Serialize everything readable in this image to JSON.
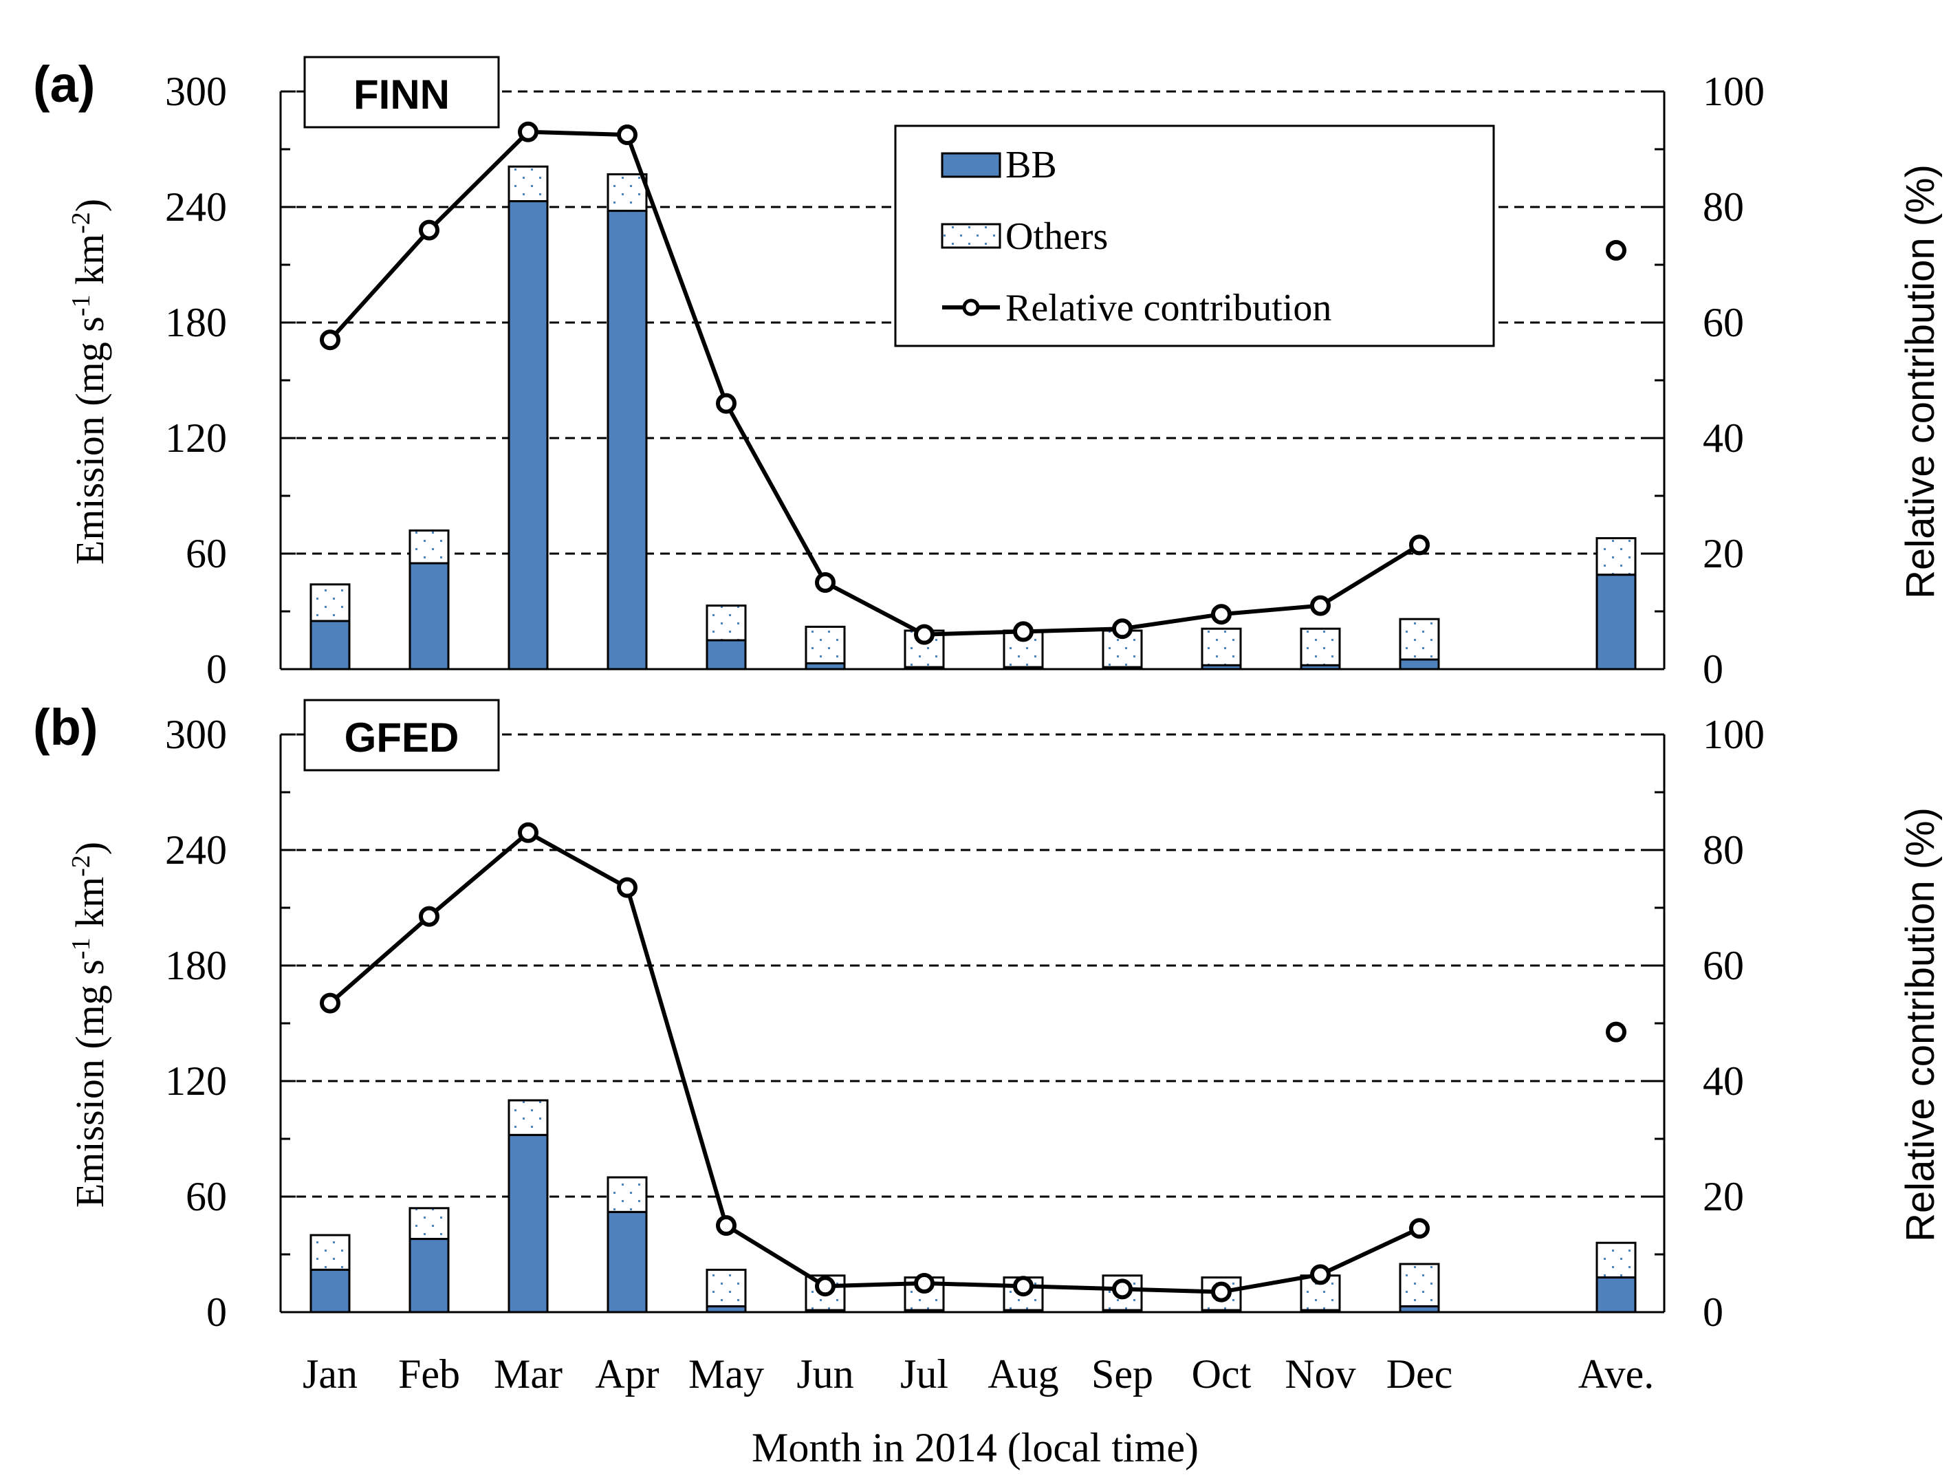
{
  "figure": {
    "x_axis_title": "Month in 2014 (local time)",
    "y_left_title_main": "Emission (mg s",
    "y_left_sup1": "-1",
    "y_left_mid": " km",
    "y_left_sup2": "-2",
    "y_left_end": ")",
    "y_right_title": "Relative contribution (%)"
  },
  "legend": {
    "bb": "BB",
    "others": "Others",
    "relative": "Relative contribution"
  },
  "colors": {
    "bb": "#4f81bd",
    "bb_edge": "#000000",
    "others_fill": "#ffffff",
    "others_dot": "#4f81bd",
    "line": "#000000",
    "grid": "#000000"
  },
  "chart_data": [
    {
      "type": "bar",
      "panel_label": "(a)",
      "title": "FINN",
      "categories": [
        "Jan",
        "Feb",
        "Mar",
        "Apr",
        "May",
        "Jun",
        "Jul",
        "Aug",
        "Sep",
        "Oct",
        "Nov",
        "Dec",
        "Ave."
      ],
      "series": [
        {
          "name": "BB",
          "stack": true,
          "values": [
            25,
            55,
            243,
            238,
            15,
            3,
            1,
            1,
            1,
            2,
            2,
            5,
            49
          ]
        },
        {
          "name": "Others",
          "stack": true,
          "values": [
            19,
            17,
            18,
            19,
            18,
            19,
            19,
            19,
            19,
            19,
            19,
            21,
            19
          ]
        },
        {
          "name": "Relative contribution",
          "type": "line",
          "axis": "right",
          "values": [
            57,
            76,
            93,
            92.5,
            46,
            15,
            6,
            6.5,
            7,
            9.5,
            11,
            21.5,
            72.5
          ],
          "connected_through_index": 11
        }
      ],
      "ylim_left": [
        0,
        300
      ],
      "ylim_right": [
        0,
        100
      ],
      "yticks_left": [
        0,
        60,
        120,
        180,
        240,
        300
      ],
      "yticks_right": [
        0,
        20,
        40,
        60,
        80,
        100
      ]
    },
    {
      "type": "bar",
      "panel_label": "(b)",
      "title": "GFED",
      "categories": [
        "Jan",
        "Feb",
        "Mar",
        "Apr",
        "May",
        "Jun",
        "Jul",
        "Aug",
        "Sep",
        "Oct",
        "Nov",
        "Dec",
        "Ave."
      ],
      "series": [
        {
          "name": "BB",
          "stack": true,
          "values": [
            22,
            38,
            92,
            52,
            3,
            1,
            1,
            1,
            1,
            1,
            1,
            3,
            18
          ]
        },
        {
          "name": "Others",
          "stack": true,
          "values": [
            18,
            16,
            18,
            18,
            19,
            18,
            17,
            17,
            18,
            17,
            18,
            22,
            18
          ]
        },
        {
          "name": "Relative contribution",
          "type": "line",
          "axis": "right",
          "values": [
            53.5,
            68.5,
            83,
            73.5,
            15,
            4.5,
            5,
            4.5,
            4,
            3.5,
            6.5,
            14.5,
            48.5
          ],
          "connected_through_index": 11
        }
      ],
      "ylim_left": [
        0,
        300
      ],
      "ylim_right": [
        0,
        100
      ],
      "yticks_left": [
        0,
        60,
        120,
        180,
        240,
        300
      ],
      "yticks_right": [
        0,
        20,
        40,
        60,
        80,
        100
      ]
    }
  ]
}
